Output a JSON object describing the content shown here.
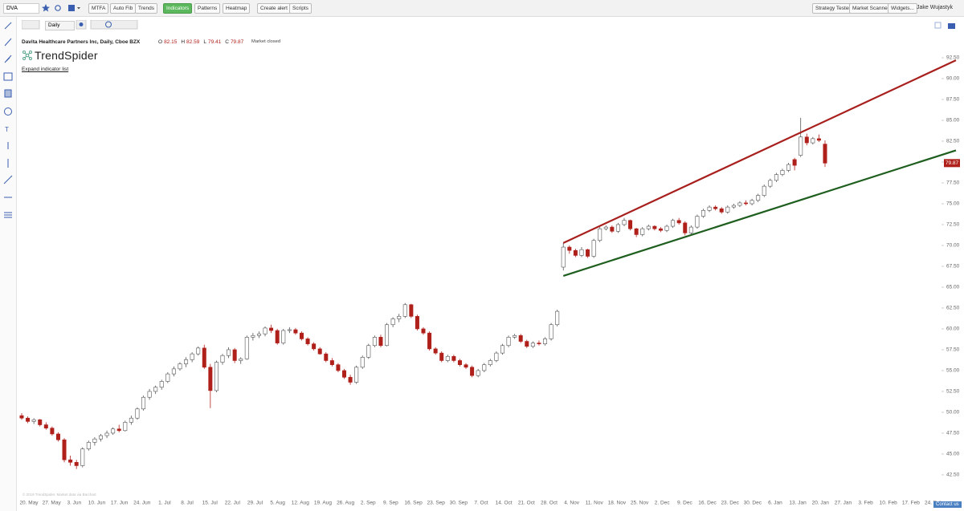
{
  "header": {
    "symbol": "DVA",
    "buttons": [
      "MTFA",
      "Auto Fib",
      "Trends",
      "Indicators",
      "Patterns",
      "Heatmap",
      "Create alert",
      "Scripts"
    ],
    "right_buttons": [
      "Strategy Tester",
      "Market Scanner",
      "Widgets..."
    ],
    "user": "Jake Wujastyk",
    "timeframe": "Daily"
  },
  "chart_data": {
    "type": "candlestick",
    "title": "Davita Healthcare Partners Inc, Daily, Cboe BZX",
    "quote": [
      {
        "label": "O",
        "value": 82.15
      },
      {
        "label": "H",
        "value": 82.59
      },
      {
        "label": "L",
        "value": 79.41
      },
      {
        "label": "C",
        "value": 79.87
      }
    ],
    "status": "Market closed",
    "brand": "TrendSpider",
    "expand_label": "Expand indicator list",
    "footer": "© 2019 TrendSpider. Market data via Barchart",
    "contact": "Contact us",
    "ylim": [
      39.8,
      97.5
    ],
    "yticks": [
      {
        "value": 42.5,
        "label": "42.50"
      },
      {
        "value": 45,
        "label": "45.00"
      },
      {
        "value": 47.5,
        "label": "47.50"
      },
      {
        "value": 50,
        "label": "50.00"
      },
      {
        "value": 52.5,
        "label": "52.50"
      },
      {
        "value": 55,
        "label": "55.00"
      },
      {
        "value": 57.5,
        "label": "57.50"
      },
      {
        "value": 60,
        "label": "60.00"
      },
      {
        "value": 62.5,
        "label": "62.50"
      },
      {
        "value": 65,
        "label": "65.00"
      },
      {
        "value": 67.5,
        "label": "67.50"
      },
      {
        "value": 70,
        "label": "70.00"
      },
      {
        "value": 72.5,
        "label": "72.50"
      },
      {
        "value": 75,
        "label": "75.00"
      },
      {
        "value": 77.5,
        "label": "77.50"
      },
      {
        "value": 80,
        "label": "80.00"
      },
      {
        "value": 82.5,
        "label": "82.50"
      },
      {
        "value": 85,
        "label": "85.00"
      },
      {
        "value": 87.5,
        "label": "87.50"
      },
      {
        "value": 90,
        "label": "90.00"
      },
      {
        "value": 92.5,
        "label": "92.50"
      }
    ],
    "xlabels": [
      "20. May",
      "27. May",
      "3. Jun",
      "10. Jun",
      "17. Jun",
      "24. Jun",
      "1. Jul",
      "8. Jul",
      "15. Jul",
      "22. Jul",
      "29. Jul",
      "5. Aug",
      "12. Aug",
      "19. Aug",
      "26. Aug",
      "2. Sep",
      "9. Sep",
      "16. Sep",
      "23. Sep",
      "30. Sep",
      "7. Oct",
      "14. Oct",
      "21. Oct",
      "28. Oct",
      "4. Nov",
      "11. Nov",
      "18. Nov",
      "25. Nov",
      "2. Dec",
      "9. Dec",
      "16. Dec",
      "23. Dec",
      "30. Dec",
      "6. Jan",
      "13. Jan",
      "20. Jan",
      "27. Jan",
      "3. Feb",
      "10. Feb",
      "17. Feb",
      "24. Feb"
    ],
    "up_color": "#ffffff",
    "down_color": "#b0201b",
    "ohlc": [
      [
        49.6,
        49.9,
        49.1,
        49.3
      ],
      [
        49.3,
        49.5,
        48.7,
        48.9
      ],
      [
        48.9,
        49.3,
        48.6,
        49.1
      ],
      [
        49.1,
        49.2,
        48.3,
        48.5
      ],
      [
        48.5,
        48.8,
        47.9,
        48.1
      ],
      [
        48.1,
        48.3,
        47.2,
        47.4
      ],
      [
        47.4,
        47.6,
        46.5,
        46.7
      ],
      [
        46.7,
        46.9,
        44.0,
        44.3
      ],
      [
        44.3,
        44.8,
        43.6,
        44.0
      ],
      [
        44.0,
        44.3,
        43.2,
        43.6
      ],
      [
        43.6,
        45.8,
        43.4,
        45.6
      ],
      [
        45.6,
        46.6,
        45.4,
        46.4
      ],
      [
        46.4,
        47.0,
        46.0,
        46.8
      ],
      [
        46.8,
        47.4,
        46.5,
        47.2
      ],
      [
        47.2,
        47.8,
        46.9,
        47.5
      ],
      [
        47.5,
        48.2,
        47.3,
        48.0
      ],
      [
        48.0,
        48.5,
        47.6,
        47.8
      ],
      [
        47.8,
        49.0,
        47.7,
        48.8
      ],
      [
        48.8,
        49.6,
        48.5,
        49.3
      ],
      [
        49.3,
        50.6,
        49.1,
        50.4
      ],
      [
        50.4,
        52.0,
        50.2,
        51.8
      ],
      [
        51.8,
        52.8,
        51.5,
        52.5
      ],
      [
        52.5,
        53.2,
        52.2,
        53.0
      ],
      [
        53.0,
        53.9,
        52.7,
        53.7
      ],
      [
        53.7,
        54.8,
        53.5,
        54.6
      ],
      [
        54.6,
        55.5,
        54.3,
        55.2
      ],
      [
        55.2,
        56.0,
        55.0,
        55.8
      ],
      [
        55.8,
        56.6,
        55.4,
        56.3
      ],
      [
        56.3,
        57.2,
        56.0,
        57.0
      ],
      [
        57.0,
        57.9,
        56.8,
        57.7
      ],
      [
        57.7,
        58.1,
        55.2,
        55.4
      ],
      [
        55.4,
        55.8,
        50.5,
        52.6
      ],
      [
        52.6,
        56.2,
        52.4,
        56.0
      ],
      [
        56.0,
        57.0,
        55.7,
        56.8
      ],
      [
        56.8,
        57.8,
        56.5,
        57.5
      ],
      [
        57.5,
        57.7,
        55.9,
        56.2
      ],
      [
        56.2,
        56.6,
        55.8,
        56.4
      ],
      [
        56.4,
        59.2,
        56.3,
        59.0
      ],
      [
        59.0,
        59.5,
        58.6,
        59.2
      ],
      [
        59.2,
        59.7,
        58.9,
        59.4
      ],
      [
        59.4,
        60.3,
        59.1,
        60.1
      ],
      [
        60.1,
        60.5,
        59.5,
        59.8
      ],
      [
        59.8,
        60.0,
        58.1,
        58.3
      ],
      [
        58.3,
        60.0,
        58.1,
        59.8
      ],
      [
        59.8,
        60.2,
        59.5,
        59.9
      ],
      [
        59.9,
        60.1,
        59.3,
        59.5
      ],
      [
        59.5,
        59.7,
        58.6,
        58.8
      ],
      [
        58.8,
        59.0,
        58.0,
        58.2
      ],
      [
        58.2,
        58.4,
        57.4,
        57.6
      ],
      [
        57.6,
        57.8,
        56.9,
        57.0
      ],
      [
        57.0,
        57.2,
        56.0,
        56.2
      ],
      [
        56.2,
        56.5,
        55.5,
        55.7
      ],
      [
        55.7,
        55.9,
        54.8,
        55.0
      ],
      [
        55.0,
        55.2,
        54.0,
        54.2
      ],
      [
        54.2,
        54.5,
        53.3,
        53.6
      ],
      [
        53.6,
        55.6,
        53.4,
        55.4
      ],
      [
        55.4,
        56.8,
        55.2,
        56.6
      ],
      [
        56.6,
        58.2,
        56.4,
        58.0
      ],
      [
        58.0,
        59.2,
        57.8,
        59.0
      ],
      [
        59.0,
        59.3,
        57.8,
        58.0
      ],
      [
        58.0,
        60.7,
        57.9,
        60.5
      ],
      [
        60.5,
        61.4,
        60.2,
        61.2
      ],
      [
        61.2,
        61.8,
        60.8,
        61.5
      ],
      [
        61.5,
        63.1,
        61.3,
        62.9
      ],
      [
        62.9,
        63.0,
        61.3,
        61.5
      ],
      [
        61.5,
        61.7,
        59.8,
        60.0
      ],
      [
        60.0,
        60.2,
        59.3,
        59.5
      ],
      [
        59.5,
        59.7,
        57.4,
        57.6
      ],
      [
        57.6,
        57.8,
        56.9,
        57.1
      ],
      [
        57.1,
        57.3,
        56.0,
        56.2
      ],
      [
        56.2,
        56.9,
        56.0,
        56.7
      ],
      [
        56.7,
        56.9,
        56.0,
        56.2
      ],
      [
        56.2,
        56.4,
        55.5,
        55.7
      ],
      [
        55.7,
        55.9,
        55.2,
        55.4
      ],
      [
        55.4,
        55.6,
        54.2,
        54.4
      ],
      [
        54.4,
        55.2,
        54.2,
        55.0
      ],
      [
        55.0,
        55.9,
        54.8,
        55.7
      ],
      [
        55.7,
        56.4,
        55.5,
        56.2
      ],
      [
        56.2,
        57.3,
        56.0,
        57.1
      ],
      [
        57.1,
        58.2,
        56.9,
        58.0
      ],
      [
        58.0,
        59.2,
        57.8,
        59.0
      ],
      [
        59.0,
        59.4,
        58.8,
        59.2
      ],
      [
        59.2,
        59.4,
        58.3,
        58.5
      ],
      [
        58.5,
        58.7,
        57.7,
        57.9
      ],
      [
        57.9,
        58.5,
        57.7,
        58.3
      ],
      [
        58.3,
        58.6,
        58.0,
        58.2
      ],
      [
        58.2,
        59.0,
        58.0,
        58.8
      ],
      [
        58.8,
        60.7,
        58.6,
        60.5
      ],
      [
        60.5,
        62.3,
        60.3,
        62.1
      ],
      [
        67.4,
        70.3,
        67.0,
        69.8
      ],
      [
        69.8,
        70.0,
        69.0,
        69.4
      ],
      [
        69.4,
        69.6,
        68.6,
        68.8
      ],
      [
        68.8,
        69.8,
        68.6,
        69.5
      ],
      [
        69.5,
        69.6,
        68.5,
        68.7
      ],
      [
        68.7,
        70.8,
        68.5,
        70.6
      ],
      [
        70.6,
        72.2,
        70.4,
        72.0
      ],
      [
        72.0,
        72.4,
        71.8,
        72.2
      ],
      [
        72.2,
        72.4,
        71.5,
        71.7
      ],
      [
        71.7,
        72.7,
        71.5,
        72.5
      ],
      [
        72.5,
        73.3,
        72.3,
        73.0
      ],
      [
        73.0,
        73.1,
        71.8,
        72.0
      ],
      [
        72.0,
        72.1,
        71.0,
        71.3
      ],
      [
        71.3,
        72.2,
        71.1,
        72.0
      ],
      [
        72.0,
        72.5,
        71.8,
        72.3
      ],
      [
        72.3,
        72.4,
        71.8,
        72.0
      ],
      [
        72.0,
        72.2,
        71.6,
        71.8
      ],
      [
        71.8,
        72.5,
        71.6,
        72.3
      ],
      [
        72.3,
        73.2,
        72.1,
        73.0
      ],
      [
        73.0,
        73.3,
        72.5,
        72.7
      ],
      [
        72.7,
        72.9,
        71.2,
        71.5
      ],
      [
        71.5,
        72.4,
        71.3,
        72.2
      ],
      [
        72.2,
        73.7,
        72.0,
        73.5
      ],
      [
        73.5,
        74.4,
        73.3,
        74.2
      ],
      [
        74.2,
        74.8,
        74.0,
        74.6
      ],
      [
        74.6,
        74.8,
        74.2,
        74.4
      ],
      [
        74.4,
        74.6,
        73.8,
        74.0
      ],
      [
        74.0,
        74.8,
        73.8,
        74.6
      ],
      [
        74.6,
        75.0,
        74.4,
        74.8
      ],
      [
        74.8,
        75.3,
        74.6,
        75.1
      ],
      [
        75.1,
        75.4,
        74.8,
        75.0
      ],
      [
        75.0,
        75.6,
        74.8,
        75.4
      ],
      [
        75.4,
        76.2,
        75.2,
        76.0
      ],
      [
        76.0,
        77.3,
        75.8,
        77.1
      ],
      [
        77.1,
        78.0,
        76.9,
        77.8
      ],
      [
        77.8,
        78.7,
        77.6,
        78.5
      ],
      [
        78.5,
        79.2,
        78.3,
        79.0
      ],
      [
        79.0,
        79.9,
        78.8,
        79.7
      ],
      [
        80.3,
        80.5,
        79.0,
        79.6
      ],
      [
        80.8,
        85.3,
        80.6,
        83.0
      ],
      [
        83.0,
        83.4,
        82.0,
        82.3
      ],
      [
        82.3,
        83.0,
        82.1,
        82.8
      ],
      [
        82.8,
        83.3,
        82.4,
        82.6
      ],
      [
        82.15,
        82.59,
        79.41,
        79.87
      ]
    ],
    "trendlines": [
      {
        "color": "#a8201e",
        "start_index": 89,
        "values": [
          70.3,
          92.2
        ]
      },
      {
        "color": "#1e5e1e",
        "start_index": 89,
        "values": [
          66.35,
          81.4
        ]
      }
    ]
  }
}
